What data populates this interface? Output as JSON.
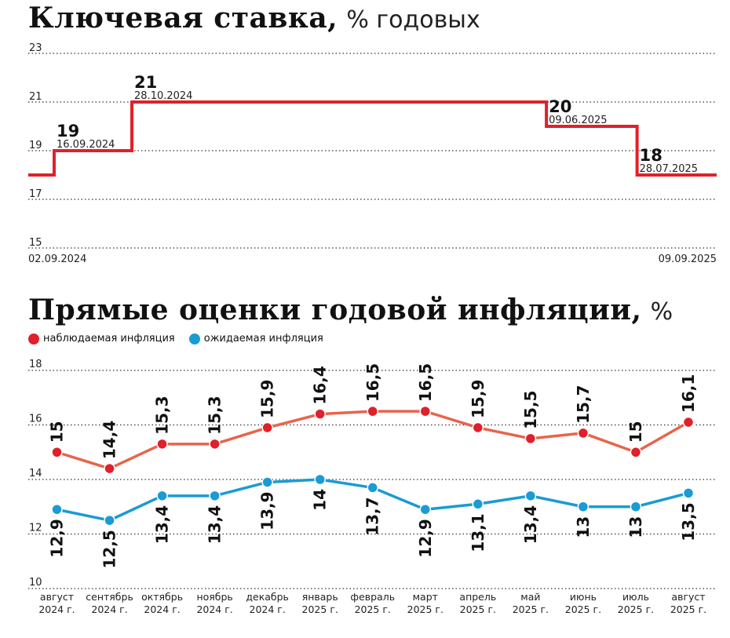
{
  "colors": {
    "rate": "#e0202a",
    "observed": "#e8644b",
    "observed_marker": "#e0202a",
    "expected": "#1a9bd4",
    "grid": "#333333"
  },
  "title1": {
    "bold": "Ключевая ставка,",
    "light": "% годовых"
  },
  "title2": {
    "bold": "Прямые оценки годовой инфляции,",
    "light": "%"
  },
  "legend": [
    {
      "label": "наблюдаемая инфляция",
      "color": "#e0202a"
    },
    {
      "label": "ожидаемая инфляция",
      "color": "#1a9bd4"
    }
  ],
  "chart_data": [
    {
      "type": "line",
      "step": true,
      "title": "Ключевая ставка, % годовых",
      "ylim": [
        15,
        23
      ],
      "yticks": [
        "15",
        "17",
        "19",
        "21",
        "23"
      ],
      "grid": true,
      "x_start_label": "02.09.2024",
      "x_end_label": "09.09.2025",
      "x_range": [
        "2024-09-02",
        "2025-09-09"
      ],
      "series": [
        {
          "points": [
            {
              "date": "2024-09-02",
              "value": 18
            },
            {
              "date": "2024-09-16",
              "value": 19
            },
            {
              "date": "2024-10-28",
              "value": 21
            },
            {
              "date": "2025-06-09",
              "value": 20
            },
            {
              "date": "2025-07-28",
              "value": 18
            },
            {
              "date": "2025-09-09",
              "value": 18
            }
          ]
        }
      ],
      "annotations": [
        {
          "value": "19",
          "date_label": "16.09.2024",
          "date": "2024-09-16",
          "y": 19
        },
        {
          "value": "21",
          "date_label": "28.10.2024",
          "date": "2024-10-28",
          "y": 21
        },
        {
          "value": "20",
          "date_label": "09.06.2025",
          "date": "2025-06-09",
          "y": 20
        },
        {
          "value": "18",
          "date_label": "28.07.2025",
          "date": "2025-07-28",
          "y": 18
        }
      ]
    },
    {
      "type": "line",
      "title": "Прямые оценки годовой инфляции, %",
      "ylim": [
        10,
        18
      ],
      "yticks": [
        "10",
        "12",
        "14",
        "16",
        "18"
      ],
      "grid": true,
      "legend_position": "top-left",
      "categories": [
        [
          "август",
          "2024 г."
        ],
        [
          "сентябрь",
          "2024 г."
        ],
        [
          "октябрь",
          "2024 г."
        ],
        [
          "ноябрь",
          "2024 г."
        ],
        [
          "декабрь",
          "2024 г."
        ],
        [
          "январь",
          "2025 г."
        ],
        [
          "февраль",
          "2025 г."
        ],
        [
          "март",
          "2025 г."
        ],
        [
          "апрель",
          "2025 г."
        ],
        [
          "май",
          "2025 г."
        ],
        [
          "июнь",
          "2025 г."
        ],
        [
          "июль",
          "2025 г."
        ],
        [
          "август",
          "2025 г."
        ]
      ],
      "series": [
        {
          "name": "наблюдаемая инфляция",
          "values": [
            15,
            14.4,
            15.3,
            15.3,
            15.9,
            16.4,
            16.5,
            16.5,
            15.9,
            15.5,
            15.7,
            15,
            16.1
          ],
          "labels": [
            "15",
            "14,4",
            "15,3",
            "15,3",
            "15,9",
            "16,4",
            "16,5",
            "16,5",
            "15,9",
            "15,5",
            "15,7",
            "15",
            "16,1"
          ]
        },
        {
          "name": "ожидаемая инфляция",
          "values": [
            12.9,
            12.5,
            13.4,
            13.4,
            13.9,
            14,
            13.7,
            12.9,
            13.1,
            13.4,
            13,
            13,
            13.5
          ],
          "labels": [
            "12,9",
            "12,5",
            "13,4",
            "13,4",
            "13,9",
            "14",
            "13,7",
            "12,9",
            "13,1",
            "13,4",
            "13",
            "13",
            "13,5"
          ]
        }
      ]
    }
  ]
}
